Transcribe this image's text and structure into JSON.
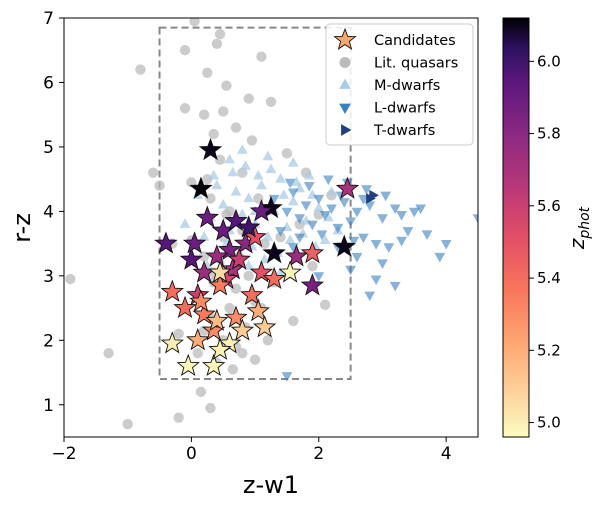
{
  "chart_data": {
    "type": "scatter",
    "xlabel": "z-w1",
    "ylabel": "r-z",
    "xlim": [
      -2,
      4.5
    ],
    "ylim": [
      0.5,
      7
    ],
    "xticks": [
      "−2",
      "0",
      "2",
      "4"
    ],
    "yticks": [
      "1",
      "2",
      "3",
      "4",
      "5",
      "6",
      "7"
    ],
    "legend_position": "top-right",
    "selection_box": {
      "x": [
        -0.5,
        2.5
      ],
      "y": [
        1.4,
        6.85
      ],
      "style": "dashed",
      "color": "#888888"
    },
    "colorbar": {
      "label": "z_phot",
      "label_main": "z",
      "label_sub": "phot",
      "range": [
        4.96,
        6.12
      ],
      "ticks": [
        "5.0",
        "5.2",
        "5.4",
        "5.6",
        "5.8",
        "6.0"
      ],
      "tick_values": [
        5.0,
        5.2,
        5.4,
        5.6,
        5.8,
        6.0
      ],
      "colormap": "magma_r"
    },
    "series": [
      {
        "name": "Lit. quasars",
        "marker": "circle",
        "color": "#bbbbbb",
        "points": [
          [
            -1.9,
            2.95
          ],
          [
            -1.3,
            1.8
          ],
          [
            -1.0,
            0.7
          ],
          [
            -0.8,
            6.2
          ],
          [
            -0.6,
            4.6
          ],
          [
            -0.5,
            4.4
          ],
          [
            -0.3,
            3.5
          ],
          [
            -0.2,
            2.1
          ],
          [
            -0.1,
            5.6
          ],
          [
            -0.1,
            6.5
          ],
          [
            0.0,
            4.45
          ],
          [
            0.0,
            3.55
          ],
          [
            0.05,
            6.95
          ],
          [
            0.1,
            1.8
          ],
          [
            0.15,
            2.6
          ],
          [
            0.2,
            5.5
          ],
          [
            0.2,
            3.3
          ],
          [
            0.25,
            6.15
          ],
          [
            0.3,
            4.2
          ],
          [
            0.3,
            2.35
          ],
          [
            0.35,
            5.2
          ],
          [
            0.4,
            1.65
          ],
          [
            0.4,
            6.6
          ],
          [
            0.45,
            4.8
          ],
          [
            0.5,
            2.0
          ],
          [
            0.5,
            3.6
          ],
          [
            0.55,
            5.95
          ],
          [
            0.6,
            2.5
          ],
          [
            0.6,
            4.0
          ],
          [
            0.65,
            1.55
          ],
          [
            0.7,
            5.3
          ],
          [
            0.7,
            2.8
          ],
          [
            0.75,
            3.3
          ],
          [
            0.8,
            1.8
          ],
          [
            0.8,
            4.6
          ],
          [
            0.85,
            2.2
          ],
          [
            0.9,
            3.0
          ],
          [
            0.95,
            5.1
          ],
          [
            1.0,
            2.6
          ],
          [
            1.0,
            1.7
          ],
          [
            1.05,
            4.2
          ],
          [
            1.1,
            6.4
          ],
          [
            1.15,
            3.5
          ],
          [
            1.2,
            2.0
          ],
          [
            1.25,
            5.7
          ],
          [
            1.3,
            2.9
          ],
          [
            1.4,
            3.6
          ],
          [
            1.5,
            4.9
          ],
          [
            1.6,
            2.3
          ],
          [
            1.7,
            3.8
          ],
          [
            1.8,
            4.6
          ],
          [
            2.0,
            3.95
          ],
          [
            2.1,
            2.55
          ],
          [
            2.2,
            4.25
          ],
          [
            1.9,
            3.15
          ],
          [
            0.3,
            0.95
          ],
          [
            -0.2,
            0.8
          ],
          [
            0.35,
            2.9
          ],
          [
            0.55,
            3.95
          ],
          [
            0.15,
            1.2
          ],
          [
            0.9,
            5.75
          ],
          [
            0.45,
            6.75
          ],
          [
            0.6,
            1.95
          ],
          [
            0.25,
            4.5
          ],
          [
            0.8,
            3.7
          ],
          [
            0.35,
            3.05
          ],
          [
            1.1,
            2.5
          ],
          [
            0.5,
            5.55
          ],
          [
            0.2,
            2.15
          ],
          [
            0.7,
            1.9
          ]
        ]
      },
      {
        "name": "M-dwarfs",
        "marker": "triangle-up",
        "color": "#a9cbe6",
        "points": [
          [
            0.3,
            3.9
          ],
          [
            0.5,
            4.1
          ],
          [
            0.6,
            3.7
          ],
          [
            0.7,
            4.3
          ],
          [
            0.8,
            3.95
          ],
          [
            0.9,
            4.2
          ],
          [
            1.0,
            3.8
          ],
          [
            1.1,
            4.4
          ],
          [
            1.2,
            3.6
          ],
          [
            1.3,
            4.0
          ],
          [
            1.4,
            4.5
          ],
          [
            1.5,
            3.75
          ],
          [
            1.6,
            4.15
          ],
          [
            1.7,
            4.35
          ],
          [
            1.8,
            3.85
          ],
          [
            1.9,
            4.25
          ],
          [
            2.0,
            4.05
          ],
          [
            2.1,
            3.55
          ],
          [
            2.2,
            4.3
          ],
          [
            0.4,
            4.4
          ],
          [
            0.55,
            3.5
          ],
          [
            0.65,
            4.6
          ],
          [
            0.75,
            3.3
          ],
          [
            0.85,
            4.7
          ],
          [
            0.95,
            3.45
          ],
          [
            1.05,
            4.55
          ],
          [
            1.15,
            3.25
          ],
          [
            1.25,
            4.65
          ],
          [
            1.35,
            3.35
          ],
          [
            1.45,
            4.25
          ],
          [
            1.55,
            3.55
          ],
          [
            1.65,
            4.45
          ],
          [
            1.75,
            3.65
          ],
          [
            0.2,
            3.6
          ],
          [
            0.35,
            4.55
          ],
          [
            -0.1,
            3.8
          ],
          [
            0.1,
            4.25
          ],
          [
            1.85,
            4.55
          ],
          [
            2.15,
            3.9
          ],
          [
            1.95,
            3.45
          ],
          [
            0.45,
            3.25
          ],
          [
            0.9,
            3.15
          ],
          [
            1.4,
            3.05
          ],
          [
            0.25,
            3.15
          ],
          [
            1.2,
            4.85
          ],
          [
            0.8,
            4.95
          ],
          [
            1.6,
            4.75
          ],
          [
            2.3,
            3.7
          ],
          [
            0.6,
            4.8
          ],
          [
            1.0,
            4.0
          ]
        ]
      },
      {
        "name": "L-dwarfs",
        "marker": "triangle-down",
        "color": "#3a7fbf",
        "points": [
          [
            1.3,
            4.2
          ],
          [
            1.5,
            4.0
          ],
          [
            1.6,
            4.3
          ],
          [
            1.7,
            3.9
          ],
          [
            1.8,
            4.1
          ],
          [
            1.9,
            3.8
          ],
          [
            2.0,
            4.2
          ],
          [
            2.1,
            3.95
          ],
          [
            2.2,
            4.05
          ],
          [
            2.3,
            3.75
          ],
          [
            2.4,
            4.15
          ],
          [
            2.5,
            3.85
          ],
          [
            2.6,
            4.0
          ],
          [
            2.7,
            3.6
          ],
          [
            2.8,
            4.1
          ],
          [
            2.9,
            3.5
          ],
          [
            3.0,
            3.9
          ],
          [
            3.1,
            3.45
          ],
          [
            3.3,
            3.95
          ],
          [
            3.5,
            4.0
          ],
          [
            3.7,
            3.65
          ],
          [
            3.9,
            3.3
          ],
          [
            4.0,
            3.5
          ],
          [
            4.5,
            3.9
          ],
          [
            3.2,
            2.85
          ],
          [
            2.8,
            2.7
          ],
          [
            3.0,
            3.2
          ],
          [
            1.6,
            3.45
          ],
          [
            1.4,
            3.7
          ],
          [
            2.0,
            3.0
          ],
          [
            2.5,
            3.1
          ],
          [
            2.9,
            2.95
          ],
          [
            3.3,
            3.55
          ],
          [
            1.55,
            4.45
          ],
          [
            1.85,
            4.4
          ],
          [
            2.15,
            4.5
          ],
          [
            2.45,
            4.45
          ],
          [
            2.75,
            4.35
          ],
          [
            3.05,
            4.25
          ],
          [
            3.2,
            4.05
          ],
          [
            2.6,
            3.3
          ],
          [
            2.3,
            3.45
          ],
          [
            1.7,
            3.6
          ],
          [
            2.05,
            3.65
          ],
          [
            2.55,
            3.55
          ],
          [
            3.4,
            3.7
          ],
          [
            1.5,
            1.45
          ],
          [
            2.7,
            4.2
          ],
          [
            3.6,
            4.05
          ],
          [
            2.35,
            4.25
          ]
        ]
      },
      {
        "name": "T-dwarfs",
        "marker": "triangle-right",
        "color": "#1f3f7f",
        "points": [
          [
            2.8,
            4.2
          ],
          [
            2.85,
            4.25
          ]
        ]
      },
      {
        "name": "Candidates",
        "marker": "star",
        "color": "#f7a86f",
        "points": [
          [
            0.3,
            4.95,
            6.1
          ],
          [
            0.15,
            4.35,
            6.12
          ],
          [
            1.25,
            4.05,
            6.1
          ],
          [
            -0.4,
            3.5,
            5.95
          ],
          [
            0.0,
            3.25,
            5.95
          ],
          [
            0.25,
            3.9,
            5.9
          ],
          [
            0.05,
            3.5,
            5.9
          ],
          [
            0.5,
            3.7,
            5.9
          ],
          [
            0.7,
            3.85,
            5.95
          ],
          [
            1.1,
            4.0,
            5.9
          ],
          [
            1.3,
            3.35,
            6.1
          ],
          [
            0.6,
            3.4,
            5.85
          ],
          [
            0.85,
            3.5,
            5.8
          ],
          [
            0.4,
            3.3,
            5.75
          ],
          [
            0.2,
            3.05,
            5.75
          ],
          [
            0.65,
            3.1,
            5.7
          ],
          [
            0.1,
            2.7,
            5.6
          ],
          [
            0.55,
            2.95,
            5.55
          ],
          [
            0.75,
            3.25,
            5.6
          ],
          [
            1.0,
            3.6,
            5.5
          ],
          [
            1.1,
            3.05,
            5.5
          ],
          [
            1.65,
            3.3,
            5.75
          ],
          [
            1.9,
            2.85,
            5.85
          ],
          [
            2.4,
            3.45,
            6.1
          ],
          [
            2.45,
            4.35,
            5.7
          ],
          [
            -0.3,
            2.75,
            5.4
          ],
          [
            -0.1,
            2.5,
            5.4
          ],
          [
            0.2,
            2.4,
            5.35
          ],
          [
            0.35,
            2.15,
            5.3
          ],
          [
            0.45,
            2.85,
            5.35
          ],
          [
            0.7,
            2.35,
            5.3
          ],
          [
            0.95,
            2.7,
            5.4
          ],
          [
            1.3,
            2.95,
            5.4
          ],
          [
            1.9,
            3.35,
            5.45
          ],
          [
            0.1,
            2.0,
            5.2
          ],
          [
            0.4,
            2.3,
            5.15
          ],
          [
            0.8,
            2.15,
            5.1
          ],
          [
            1.05,
            2.45,
            5.2
          ],
          [
            1.15,
            2.2,
            5.1
          ],
          [
            0.45,
            3.05,
            5.05
          ],
          [
            0.6,
            1.95,
            5.0
          ],
          [
            -0.3,
            1.95,
            5.0
          ],
          [
            -0.05,
            1.6,
            4.98
          ],
          [
            0.35,
            1.6,
            4.98
          ],
          [
            0.45,
            1.85,
            5.0
          ],
          [
            1.55,
            3.05,
            4.98
          ],
          [
            0.15,
            2.6,
            5.3
          ],
          [
            0.9,
            3.75,
            6.0
          ]
        ]
      }
    ],
    "legend": [
      "Candidates",
      "Lit. quasars",
      "M-dwarfs",
      "L-dwarfs",
      "T-dwarfs"
    ]
  }
}
